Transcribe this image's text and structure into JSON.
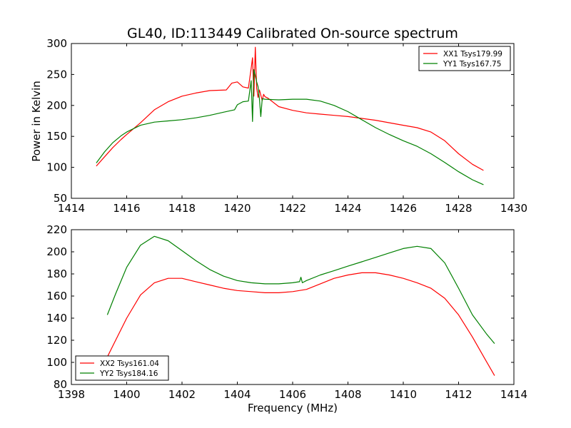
{
  "figure": {
    "title": "GL40, ID:113449 Calibrated On-source spectrum",
    "xlabel": "Frequency (MHz)"
  },
  "chart_data": [
    {
      "type": "line",
      "title": "GL40, ID:113449 Calibrated On-source spectrum",
      "xlabel": "",
      "ylabel": "Power in Kelvin",
      "xlim": [
        1414,
        1430
      ],
      "ylim": [
        50,
        300
      ],
      "xticks": [
        1414,
        1416,
        1418,
        1420,
        1422,
        1424,
        1426,
        1428,
        1430
      ],
      "yticks": [
        50,
        100,
        150,
        200,
        250,
        300
      ],
      "grid": false,
      "legend_position": "top-right",
      "series": [
        {
          "name": "XX1 Tsys179.99",
          "color": "#ff0000",
          "x": [
            1414.9,
            1415.2,
            1415.5,
            1415.8,
            1416.0,
            1416.5,
            1417.0,
            1417.5,
            1418.0,
            1418.5,
            1419.0,
            1419.6,
            1419.8,
            1420.0,
            1420.2,
            1420.4,
            1420.5,
            1420.55,
            1420.6,
            1420.65,
            1420.7,
            1420.75,
            1420.8,
            1420.9,
            1420.95,
            1421.0,
            1421.1,
            1421.5,
            1422.0,
            1422.5,
            1423.0,
            1423.5,
            1424.0,
            1424.5,
            1425.0,
            1425.5,
            1426.0,
            1426.5,
            1427.0,
            1427.5,
            1428.0,
            1428.5,
            1428.9
          ],
          "y": [
            102,
            117,
            132,
            145,
            153,
            172,
            193,
            206,
            215,
            220,
            224,
            225,
            236,
            238,
            230,
            228,
            260,
            277,
            215,
            294,
            228,
            213,
            225,
            208,
            218,
            214,
            212,
            198,
            192,
            188,
            186,
            184,
            182,
            179,
            176,
            172,
            168,
            164,
            157,
            143,
            122,
            105,
            95
          ]
        },
        {
          "name": "YY1 Tsys167.75",
          "color": "#008000",
          "x": [
            1414.9,
            1415.2,
            1415.5,
            1415.8,
            1416.0,
            1416.5,
            1417.0,
            1417.5,
            1418.0,
            1418.5,
            1419.0,
            1419.5,
            1419.9,
            1420.0,
            1420.2,
            1420.4,
            1420.5,
            1420.55,
            1420.6,
            1420.7,
            1420.75,
            1420.8,
            1420.85,
            1420.9,
            1421.0,
            1421.5,
            1422.0,
            1422.5,
            1423.0,
            1423.5,
            1424.0,
            1424.5,
            1425.0,
            1425.5,
            1426.0,
            1426.5,
            1427.0,
            1427.5,
            1428.0,
            1428.5,
            1428.9
          ],
          "y": [
            107,
            125,
            140,
            151,
            157,
            168,
            173,
            175,
            177,
            180,
            184,
            189,
            193,
            201,
            206,
            207,
            240,
            174,
            258,
            238,
            230,
            210,
            182,
            211,
            210,
            209,
            210,
            210,
            207,
            200,
            190,
            177,
            164,
            153,
            143,
            134,
            122,
            108,
            93,
            80,
            72
          ]
        }
      ]
    },
    {
      "type": "line",
      "title": "",
      "xlabel": "Frequency (MHz)",
      "ylabel": "",
      "xlim": [
        1398,
        1414
      ],
      "ylim": [
        80,
        220
      ],
      "xticks": [
        1398,
        1400,
        1402,
        1404,
        1406,
        1408,
        1410,
        1412,
        1414
      ],
      "yticks": [
        80,
        100,
        120,
        140,
        160,
        180,
        200,
        220
      ],
      "grid": false,
      "legend_position": "bottom-left",
      "series": [
        {
          "name": "XX2 Tsys161.04",
          "color": "#ff0000",
          "x": [
            1399.3,
            1399.6,
            1400.0,
            1400.5,
            1401.0,
            1401.5,
            1402.0,
            1402.5,
            1403.0,
            1403.5,
            1404.0,
            1404.5,
            1405.0,
            1405.5,
            1406.0,
            1406.5,
            1407.0,
            1407.5,
            1408.0,
            1408.5,
            1409.0,
            1409.5,
            1410.0,
            1410.5,
            1411.0,
            1411.5,
            1412.0,
            1412.5,
            1413.0,
            1413.3
          ],
          "y": [
            105,
            120,
            140,
            161,
            172,
            176,
            176,
            173,
            170,
            167,
            165,
            164,
            163,
            163,
            164,
            166,
            171,
            176,
            179,
            181,
            181,
            179,
            176,
            172,
            167,
            158,
            143,
            123,
            101,
            88
          ]
        },
        {
          "name": "YY2 Tsys184.16",
          "color": "#008000",
          "x": [
            1399.3,
            1399.6,
            1400.0,
            1400.5,
            1401.0,
            1401.5,
            1402.0,
            1402.5,
            1403.0,
            1403.5,
            1404.0,
            1404.5,
            1405.0,
            1405.5,
            1406.0,
            1406.25,
            1406.3,
            1406.35,
            1406.5,
            1407.0,
            1407.5,
            1408.0,
            1408.5,
            1409.0,
            1409.5,
            1410.0,
            1410.5,
            1411.0,
            1411.5,
            1412.0,
            1412.5,
            1413.0,
            1413.3
          ],
          "y": [
            143,
            162,
            186,
            206,
            214,
            210,
            201,
            192,
            184,
            178,
            174,
            172,
            171,
            171,
            172,
            173,
            177,
            172,
            174,
            179,
            183,
            187,
            191,
            195,
            199,
            203,
            205,
            203,
            190,
            167,
            143,
            126,
            117
          ]
        }
      ]
    }
  ]
}
